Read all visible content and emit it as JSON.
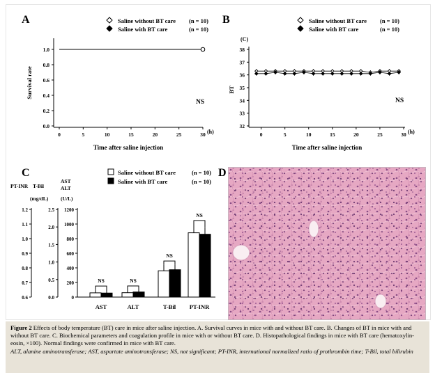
{
  "figure": {
    "caption_lead": "Figure 2",
    "caption_text": "Effects of body temperature (BT) care in mice after saline injection. A. Survival curves in mice with and without BT care. B. Changes of BT in mice with and without BT care. C. Biochemical parameters and coagulation profile in mice with or without BT care. D. Histopathological findings in mice with BT care (hematoxylin-eosin, ×100). Normal findings were confirmed in mice with BT care.",
    "caption_abbr": "ALT, alanine aminotransferase; AST, aspartate aminotransferase; NS, not significant; PT-INR, international normalized ratio of prothrombin time; T-Bil, total bilirubin"
  },
  "panels": {
    "A": {
      "letter": "A",
      "legend": [
        {
          "label": "Saline without BT care",
          "n": "(n = 10)",
          "marker": "open-diamond"
        },
        {
          "label": "Saline with BT care",
          "n": "(n = 10)",
          "marker": "filled-diamond"
        }
      ],
      "ns": "NS"
    },
    "B": {
      "letter": "B",
      "legend": [
        {
          "label": "Saline without BT care",
          "n": "(n = 10)",
          "marker": "open-diamond"
        },
        {
          "label": "Saline with BT care",
          "n": "(n = 10)",
          "marker": "filled-diamond"
        }
      ],
      "ns": "NS"
    },
    "C": {
      "letter": "C",
      "legend": [
        {
          "label": "Saline without BT care",
          "n": "(n = 10)",
          "marker": "open-square"
        },
        {
          "label": "Saline with BT care",
          "n": "(n = 10)",
          "marker": "filled-square"
        }
      ],
      "headers": {
        "ptinr": "PT-INR",
        "tbil": "T-Bil",
        "ast_alt": "AST\nALT",
        "tbil_unit": "(mg/dL)",
        "ast_unit": "(U/L)"
      },
      "ns_labels": [
        "NS",
        "NS",
        "NS",
        "NS"
      ]
    },
    "D": {
      "letter": "D"
    }
  },
  "chart_data": [
    {
      "type": "line",
      "panel": "A",
      "title": "",
      "xlabel": "Time after saline injection",
      "ylabel": "Survival rate",
      "x_unit": "(h)",
      "xlim": [
        0,
        30
      ],
      "ylim": [
        0,
        1.0
      ],
      "xticks": [
        "0",
        "5",
        "10",
        "15",
        "20",
        "25",
        "30"
      ],
      "yticks": [
        "0.0",
        "0.2",
        "0.4",
        "0.6",
        "0.8",
        "1.0"
      ],
      "series": [
        {
          "name": "Saline without BT care",
          "x": [
            0,
            30
          ],
          "y": [
            1.0,
            1.0
          ],
          "marker": "open-diamond"
        },
        {
          "name": "Saline with BT care",
          "x": [
            0,
            30
          ],
          "y": [
            1.0,
            1.0
          ],
          "marker": "filled-diamond"
        }
      ],
      "annotation": "NS"
    },
    {
      "type": "line",
      "panel": "B",
      "title": "",
      "xlabel": "Time after saline injection",
      "ylabel": "BT",
      "y_unit": "(C)",
      "x_unit": "(h)",
      "xlim": [
        -2,
        30
      ],
      "ylim": [
        32,
        38
      ],
      "xticks": [
        "0",
        "5",
        "10",
        "15",
        "20",
        "25",
        "30"
      ],
      "yticks": [
        "32",
        "33",
        "34",
        "35",
        "36",
        "37",
        "38"
      ],
      "series": [
        {
          "name": "Saline without BT care",
          "x": [
            -1,
            1,
            3,
            5,
            7,
            9,
            11,
            13,
            15,
            17,
            19,
            21,
            23,
            25,
            27,
            29
          ],
          "y": [
            36.3,
            36.3,
            36.3,
            36.3,
            36.3,
            36.3,
            36.3,
            36.3,
            36.3,
            36.3,
            36.3,
            36.3,
            36.2,
            36.3,
            36.3,
            36.3
          ],
          "marker": "open-diamond"
        },
        {
          "name": "Saline with BT care",
          "x": [
            -1,
            1,
            3,
            5,
            7,
            9,
            11,
            13,
            15,
            17,
            19,
            21,
            23,
            25,
            27,
            29
          ],
          "y": [
            36.1,
            36.1,
            36.2,
            36.1,
            36.1,
            36.2,
            36.1,
            36.1,
            36.1,
            36.1,
            36.1,
            36.1,
            36.1,
            36.2,
            36.1,
            36.2
          ],
          "marker": "filled-diamond"
        }
      ],
      "annotation": "NS"
    },
    {
      "type": "bar",
      "panel": "C",
      "title": "",
      "categories": [
        "AST",
        "ALT",
        "T-Bil",
        "PT-INR"
      ],
      "axes": {
        "ptinr": {
          "unit": "",
          "ylim": [
            0.6,
            1.2
          ],
          "ticks": [
            "0.6",
            "0.7",
            "0.8",
            "0.9",
            "1.0",
            "1.1",
            "1.2"
          ]
        },
        "tbil": {
          "unit": "(mg/dL)",
          "ylim": [
            0,
            2.5
          ],
          "ticks": [
            "0.0",
            "0.5",
            "1.0",
            "1.5",
            "2.0",
            "2.5"
          ]
        },
        "ast_alt": {
          "unit": "(U/L)",
          "ylim": [
            0,
            1200
          ],
          "ticks": [
            "0",
            "200",
            "400",
            "600",
            "800",
            "1000",
            "1200"
          ]
        }
      },
      "series": [
        {
          "name": "Saline without BT care",
          "values": [
            58,
            60,
            0.75,
            1.04
          ],
          "errors": [
            45,
            45,
            0.18,
            0.06
          ],
          "color": "#ffffff"
        },
        {
          "name": "Saline with BT care",
          "values": [
            55,
            70,
            0.78,
            1.03
          ],
          "errors": [
            30,
            35,
            0.14,
            0.05
          ],
          "color": "#000000"
        }
      ],
      "annotations": [
        "NS",
        "NS",
        "NS",
        "NS"
      ]
    }
  ]
}
